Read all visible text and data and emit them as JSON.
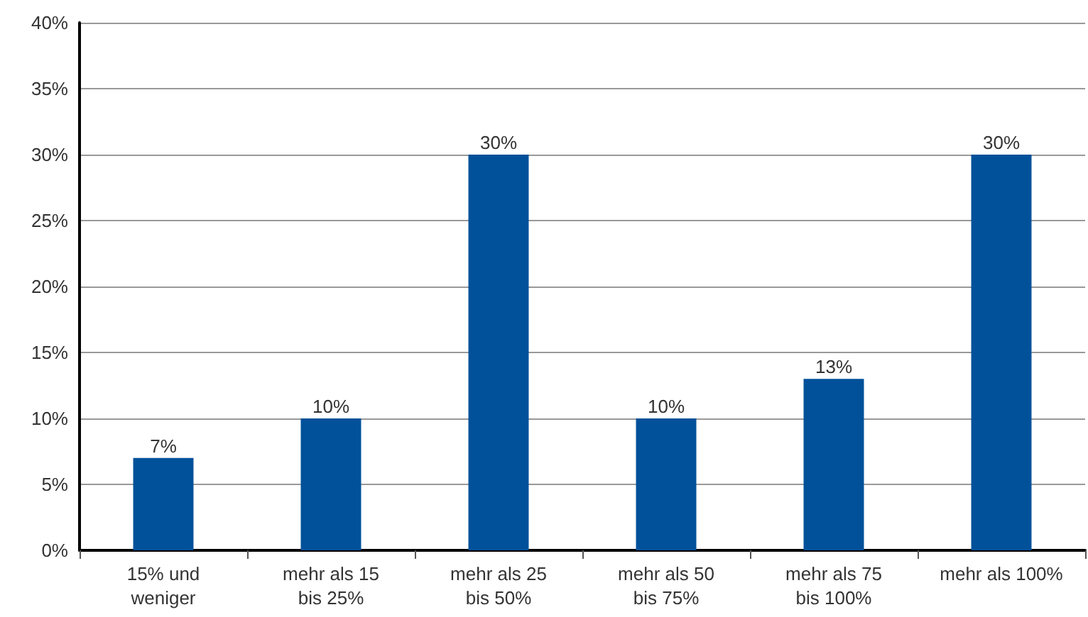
{
  "chart_data": {
    "type": "bar",
    "categories": [
      "15% und\nweniger",
      "mehr als 15\nbis 25%",
      "mehr als 25\nbis 50%",
      "mehr als 50\nbis 75%",
      "mehr als 75\nbis 100%",
      "mehr als 100%"
    ],
    "values": [
      7,
      10,
      30,
      10,
      13,
      30
    ],
    "value_labels": [
      "7%",
      "10%",
      "30%",
      "10%",
      "13%",
      "30%"
    ],
    "color": "#00519a",
    "ylim": [
      0,
      40
    ],
    "yticks": [
      {
        "value": 0,
        "label": "0%"
      },
      {
        "value": 5,
        "label": "5%"
      },
      {
        "value": 10,
        "label": "10%"
      },
      {
        "value": 15,
        "label": "15%"
      },
      {
        "value": 20,
        "label": "20%"
      },
      {
        "value": 25,
        "label": "25%"
      },
      {
        "value": 30,
        "label": "30%"
      },
      {
        "value": 35,
        "label": "35%"
      },
      {
        "value": 40,
        "label": "40%"
      }
    ],
    "grid": "y"
  }
}
